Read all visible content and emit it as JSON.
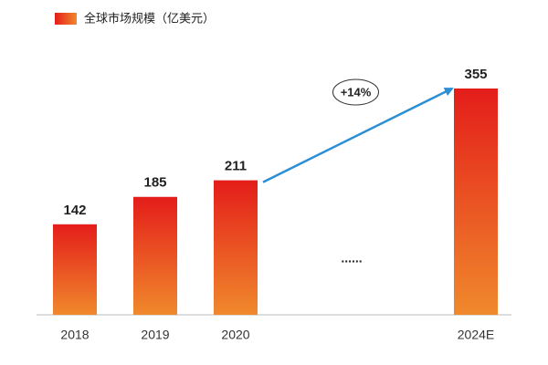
{
  "chart_data": {
    "type": "bar",
    "legend": "全球市场规模（亿美元）",
    "categories": [
      "2018",
      "2019",
      "2020",
      null,
      "2024E"
    ],
    "values": [
      142,
      185,
      211,
      null,
      355
    ],
    "gap_text": "......",
    "annotation": "+14%",
    "color_top": "#e41d1a",
    "color_bottom": "#f0892c",
    "arrow_color": "#2b8fd6"
  }
}
